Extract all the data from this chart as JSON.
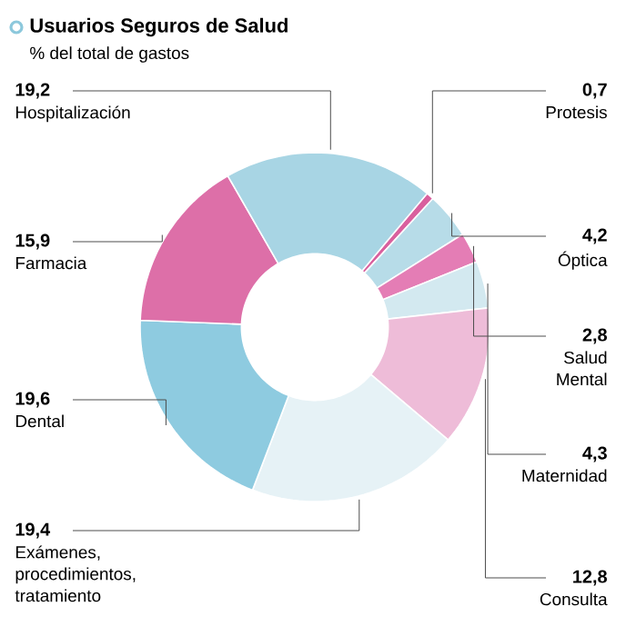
{
  "chart_data": {
    "type": "donut",
    "title": "Usuarios Seguros de Salud",
    "subtitle": "% del total de gastos",
    "categories": [
      "Protesis",
      "Óptica",
      "Salud Mental",
      "Maternidad",
      "Consulta",
      "Exámenes, procedimientos, tratamiento",
      "Dental",
      "Farmacia",
      "Hospitalización"
    ],
    "values": [
      0.7,
      4.2,
      2.8,
      4.3,
      12.8,
      19.4,
      19.6,
      15.9,
      19.2
    ],
    "value_labels": [
      "0,7",
      "4,2",
      "2,8",
      "4,3",
      "12,8",
      "19,4",
      "19,6",
      "15,9",
      "19,2"
    ],
    "colors": [
      "#d9609e",
      "#b7dce8",
      "#e47db5",
      "#d3e9f0",
      "#eebcd8",
      "#e6f2f6",
      "#8ecbe0",
      "#dd6fa8",
      "#a8d5e4"
    ]
  }
}
